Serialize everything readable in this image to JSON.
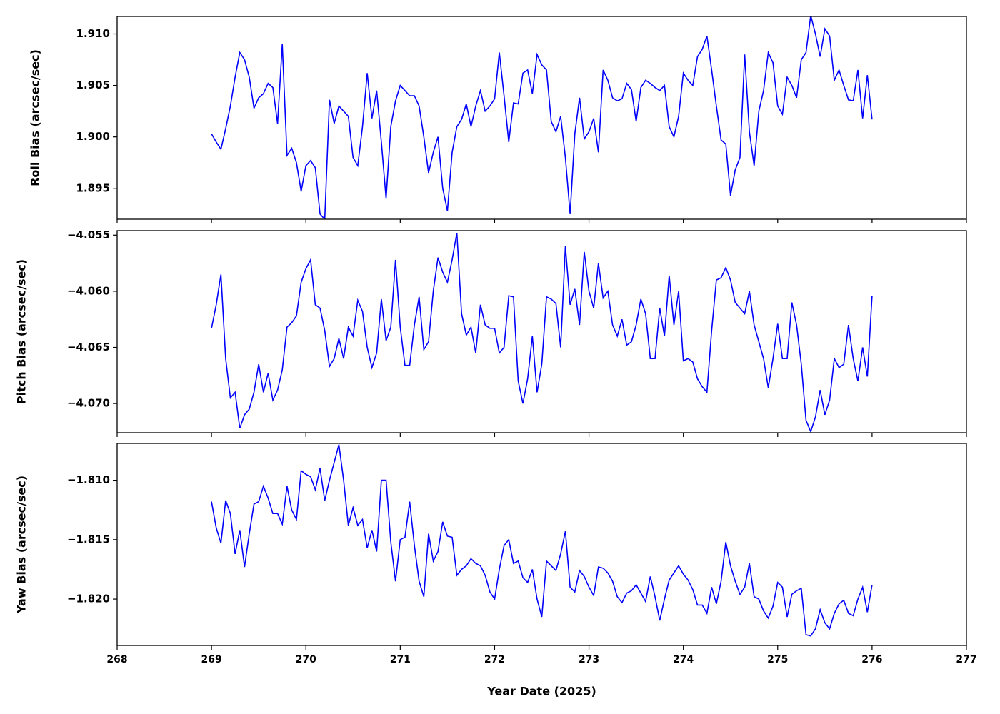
{
  "chart_data": [
    {
      "type": "line",
      "ylabel": "Roll Bias (arcsec/sec)",
      "color": "#0000ff",
      "xlim": [
        268,
        277
      ],
      "ylim": [
        1.892,
        1.9117
      ],
      "yticks": [
        1.895,
        {
          "value": 1.9,
          "label": "1.900"
        },
        1.905,
        {
          "value": 1.91,
          "label": "1.910"
        }
      ],
      "x": [
        269.0,
        269.05,
        269.1,
        269.15,
        269.2,
        269.25,
        269.3,
        269.35,
        269.4,
        269.45,
        269.5,
        269.55,
        269.6,
        269.65,
        269.7,
        269.75,
        269.8,
        269.85,
        269.9,
        269.95,
        270.0,
        270.05,
        270.1,
        270.15,
        270.2,
        270.25,
        270.3,
        270.35,
        270.4,
        270.45,
        270.5,
        270.55,
        270.6,
        270.65,
        270.7,
        270.75,
        270.8,
        270.85,
        270.9,
        270.95,
        271.0,
        271.05,
        271.1,
        271.15,
        271.2,
        271.25,
        271.3,
        271.35,
        271.4,
        271.45,
        271.5,
        271.55,
        271.6,
        271.65,
        271.7,
        271.75,
        271.8,
        271.85,
        271.9,
        271.95,
        272.0,
        272.05,
        272.1,
        272.15,
        272.2,
        272.25,
        272.3,
        272.35,
        272.4,
        272.45,
        272.5,
        272.55,
        272.6,
        272.65,
        272.7,
        272.75,
        272.8,
        272.85,
        272.9,
        272.95,
        273.0,
        273.05,
        273.1,
        273.15,
        273.2,
        273.25,
        273.3,
        273.35,
        273.4,
        273.45,
        273.5,
        273.55,
        273.6,
        273.65,
        273.7,
        273.75,
        273.8,
        273.85,
        273.9,
        273.95,
        274.0,
        274.05,
        274.1,
        274.15,
        274.2,
        274.25,
        274.3,
        274.35,
        274.4,
        274.45,
        274.5,
        274.55,
        274.6,
        274.65,
        274.7,
        274.75,
        274.8,
        274.85,
        274.9,
        274.95,
        275.0,
        275.05,
        275.1,
        275.15,
        275.2,
        275.25,
        275.3,
        275.35,
        275.4,
        275.45,
        275.5,
        275.55,
        275.6,
        275.65,
        275.7,
        275.75,
        275.8,
        275.85,
        275.9,
        275.95,
        276.0
      ],
      "values": [
        1.9003,
        1.8995,
        1.8988,
        1.9008,
        1.903,
        1.9058,
        1.9082,
        1.9075,
        1.9058,
        1.9028,
        1.9038,
        1.9042,
        1.9052,
        1.9048,
        1.9013,
        1.909,
        1.8982,
        1.8989,
        1.8975,
        1.8947,
        1.8972,
        1.8977,
        1.897,
        1.8925,
        1.892,
        1.9036,
        1.9013,
        1.903,
        1.9025,
        1.902,
        1.898,
        1.8972,
        1.901,
        1.9062,
        1.9018,
        1.9045,
        1.8995,
        1.894,
        1.901,
        1.9035,
        1.905,
        1.9045,
        1.904,
        1.904,
        1.903,
        1.9,
        1.8965,
        1.8985,
        1.9,
        1.895,
        1.8928,
        1.8985,
        1.901,
        1.9017,
        1.9032,
        1.901,
        1.903,
        1.9045,
        1.9025,
        1.903,
        1.9037,
        1.9082,
        1.904,
        1.8995,
        1.9033,
        1.9032,
        1.9062,
        1.9065,
        1.9042,
        1.908,
        1.907,
        1.9065,
        1.9015,
        1.9005,
        1.902,
        1.898,
        1.8925,
        1.9003,
        1.9038,
        1.8998,
        1.9005,
        1.9018,
        1.8985,
        1.9065,
        1.9055,
        1.9038,
        1.9035,
        1.9037,
        1.9052,
        1.9046,
        1.9015,
        1.9048,
        1.9055,
        1.9052,
        1.9048,
        1.9045,
        1.905,
        1.901,
        1.9,
        1.902,
        1.9062,
        1.9055,
        1.905,
        1.9078,
        1.9085,
        1.9098,
        1.9065,
        1.903,
        1.8997,
        1.8993,
        1.8943,
        1.8968,
        1.898,
        1.908,
        1.9005,
        1.8972,
        1.9025,
        1.9045,
        1.9082,
        1.9072,
        1.903,
        1.9022,
        1.9058,
        1.905,
        1.9038,
        1.9075,
        1.9082,
        1.9118,
        1.91,
        1.9078,
        1.9105,
        1.9098,
        1.9055,
        1.9065,
        1.905,
        1.9036,
        1.9035,
        1.9065,
        1.9018,
        1.906,
        1.9017
      ]
    },
    {
      "type": "line",
      "ylabel": "Pitch Bias (arcsec/sec)",
      "color": "#0000ff",
      "xlim": [
        268,
        277
      ],
      "ylim": [
        -4.0726,
        -4.0546
      ],
      "yticks": [
        {
          "value": -4.07,
          "label": "−4.070"
        },
        {
          "value": -4.065,
          "label": "−4.065"
        },
        {
          "value": -4.06,
          "label": "−4.060"
        },
        {
          "value": -4.055,
          "label": "−4.055"
        }
      ],
      "x": [
        269.0,
        269.05,
        269.1,
        269.15,
        269.2,
        269.25,
        269.3,
        269.35,
        269.4,
        269.45,
        269.5,
        269.55,
        269.6,
        269.65,
        269.7,
        269.75,
        269.8,
        269.85,
        269.9,
        269.95,
        270.0,
        270.05,
        270.1,
        270.15,
        270.2,
        270.25,
        270.3,
        270.35,
        270.4,
        270.45,
        270.5,
        270.55,
        270.6,
        270.65,
        270.7,
        270.75,
        270.8,
        270.85,
        270.9,
        270.95,
        271.0,
        271.05,
        271.1,
        271.15,
        271.2,
        271.25,
        271.3,
        271.35,
        271.4,
        271.45,
        271.5,
        271.55,
        271.6,
        271.65,
        271.7,
        271.75,
        271.8,
        271.85,
        271.9,
        271.95,
        272.0,
        272.05,
        272.1,
        272.15,
        272.2,
        272.25,
        272.3,
        272.35,
        272.4,
        272.45,
        272.5,
        272.55,
        272.6,
        272.65,
        272.7,
        272.75,
        272.8,
        272.85,
        272.9,
        272.95,
        273.0,
        273.05,
        273.1,
        273.15,
        273.2,
        273.25,
        273.3,
        273.35,
        273.4,
        273.45,
        273.5,
        273.55,
        273.6,
        273.65,
        273.7,
        273.75,
        273.8,
        273.85,
        273.9,
        273.95,
        274.0,
        274.05,
        274.1,
        274.15,
        274.2,
        274.25,
        274.3,
        274.35,
        274.4,
        274.45,
        274.5,
        274.55,
        274.6,
        274.65,
        274.7,
        274.75,
        274.8,
        274.85,
        274.9,
        274.95,
        275.0,
        275.05,
        275.1,
        275.15,
        275.2,
        275.25,
        275.3,
        275.35,
        275.4,
        275.45,
        275.5,
        275.55,
        275.6,
        275.65,
        275.7,
        275.75,
        275.8,
        275.85,
        275.9,
        275.95,
        276.0
      ],
      "values": [
        -4.0633,
        -4.0612,
        -4.0585,
        -4.066,
        -4.0695,
        -4.069,
        -4.0722,
        -4.071,
        -4.0705,
        -4.069,
        -4.0665,
        -4.069,
        -4.0673,
        -4.0697,
        -4.0688,
        -4.067,
        -4.0632,
        -4.0628,
        -4.0622,
        -4.0592,
        -4.058,
        -4.0572,
        -4.0612,
        -4.0615,
        -4.0635,
        -4.0667,
        -4.066,
        -4.0642,
        -4.066,
        -4.0632,
        -4.064,
        -4.0608,
        -4.0618,
        -4.065,
        -4.0668,
        -4.0655,
        -4.0607,
        -4.0644,
        -4.0632,
        -4.0572,
        -4.0632,
        -4.0666,
        -4.0666,
        -4.063,
        -4.0605,
        -4.0652,
        -4.0645,
        -4.06,
        -4.057,
        -4.0583,
        -4.0592,
        -4.0572,
        -4.0548,
        -4.062,
        -4.0639,
        -4.0632,
        -4.0655,
        -4.0612,
        -4.063,
        -4.0633,
        -4.0633,
        -4.0655,
        -4.065,
        -4.0604,
        -4.0605,
        -4.068,
        -4.07,
        -4.0678,
        -4.064,
        -4.069,
        -4.0665,
        -4.0605,
        -4.0607,
        -4.0611,
        -4.065,
        -4.056,
        -4.0612,
        -4.0598,
        -4.063,
        -4.0565,
        -4.06,
        -4.0615,
        -4.0575,
        -4.0606,
        -4.06,
        -4.063,
        -4.064,
        -4.0625,
        -4.0648,
        -4.0645,
        -4.063,
        -4.0607,
        -4.062,
        -4.066,
        -4.066,
        -4.0615,
        -4.064,
        -4.0586,
        -4.063,
        -4.06,
        -4.0662,
        -4.066,
        -4.0663,
        -4.0678,
        -4.0685,
        -4.069,
        -4.0635,
        -4.059,
        -4.0588,
        -4.0579,
        -4.059,
        -4.061,
        -4.0615,
        -4.062,
        -4.06,
        -4.063,
        -4.0645,
        -4.066,
        -4.0686,
        -4.066,
        -4.0629,
        -4.066,
        -4.066,
        -4.061,
        -4.063,
        -4.0665,
        -4.0715,
        -4.0725,
        -4.0712,
        -4.0688,
        -4.071,
        -4.0697,
        -4.066,
        -4.0668,
        -4.0665,
        -4.063,
        -4.066,
        -4.068,
        -4.065,
        -4.0676,
        -4.0604
      ]
    },
    {
      "type": "line",
      "ylabel": "Yaw Bias (arcsec/sec)",
      "xlabel": "Year Date (2025)",
      "color": "#0000ff",
      "xlim": [
        268,
        277
      ],
      "xticks": [
        268,
        269,
        270,
        271,
        272,
        273,
        274,
        275,
        276,
        277
      ],
      "ylim": [
        -1.8239,
        -1.8069
      ],
      "yticks": [
        {
          "value": -1.82,
          "label": "−1.820"
        },
        {
          "value": -1.815,
          "label": "−1.815"
        },
        {
          "value": -1.81,
          "label": "−1.810"
        }
      ],
      "x": [
        269.0,
        269.05,
        269.1,
        269.15,
        269.2,
        269.25,
        269.3,
        269.35,
        269.4,
        269.45,
        269.5,
        269.55,
        269.6,
        269.65,
        269.7,
        269.75,
        269.8,
        269.85,
        269.9,
        269.95,
        270.0,
        270.05,
        270.1,
        270.15,
        270.2,
        270.25,
        270.3,
        270.35,
        270.4,
        270.45,
        270.5,
        270.55,
        270.6,
        270.65,
        270.7,
        270.75,
        270.8,
        270.85,
        270.9,
        270.95,
        271.0,
        271.05,
        271.1,
        271.15,
        271.2,
        271.25,
        271.3,
        271.35,
        271.4,
        271.45,
        271.5,
        271.55,
        271.6,
        271.65,
        271.7,
        271.75,
        271.8,
        271.85,
        271.9,
        271.95,
        272.0,
        272.05,
        272.1,
        272.15,
        272.2,
        272.25,
        272.3,
        272.35,
        272.4,
        272.45,
        272.5,
        272.55,
        272.6,
        272.65,
        272.7,
        272.75,
        272.8,
        272.85,
        272.9,
        272.95,
        273.0,
        273.05,
        273.1,
        273.15,
        273.2,
        273.25,
        273.3,
        273.35,
        273.4,
        273.45,
        273.5,
        273.55,
        273.6,
        273.65,
        273.7,
        273.75,
        273.8,
        273.85,
        273.9,
        273.95,
        274.0,
        274.05,
        274.1,
        274.15,
        274.2,
        274.25,
        274.3,
        274.35,
        274.4,
        274.45,
        274.5,
        274.55,
        274.6,
        274.65,
        274.7,
        274.75,
        274.8,
        274.85,
        274.9,
        274.95,
        275.0,
        275.05,
        275.1,
        275.15,
        275.2,
        275.25,
        275.3,
        275.35,
        275.4,
        275.45,
        275.5,
        275.55,
        275.6,
        275.65,
        275.7,
        275.75,
        275.8,
        275.85,
        275.9,
        275.95,
        276.0
      ],
      "values": [
        -1.8118,
        -1.814,
        -1.8153,
        -1.8117,
        -1.8128,
        -1.8162,
        -1.8142,
        -1.8173,
        -1.8145,
        -1.812,
        -1.8118,
        -1.8105,
        -1.8115,
        -1.8128,
        -1.8128,
        -1.8137,
        -1.8105,
        -1.8125,
        -1.8133,
        -1.8092,
        -1.8095,
        -1.8097,
        -1.8108,
        -1.809,
        -1.8117,
        -1.81,
        -1.8085,
        -1.807,
        -1.81,
        -1.8138,
        -1.8123,
        -1.8138,
        -1.8133,
        -1.8157,
        -1.8142,
        -1.816,
        -1.81,
        -1.81,
        -1.8152,
        -1.8185,
        -1.815,
        -1.8148,
        -1.8118,
        -1.8155,
        -1.8185,
        -1.8198,
        -1.8145,
        -1.8168,
        -1.816,
        -1.8135,
        -1.8147,
        -1.8148,
        -1.818,
        -1.8175,
        -1.8172,
        -1.8166,
        -1.817,
        -1.8172,
        -1.818,
        -1.8194,
        -1.82,
        -1.8175,
        -1.8155,
        -1.815,
        -1.817,
        -1.8168,
        -1.8182,
        -1.8186,
        -1.8175,
        -1.82,
        -1.8215,
        -1.8168,
        -1.8172,
        -1.8176,
        -1.8162,
        -1.8143,
        -1.819,
        -1.8194,
        -1.8176,
        -1.8181,
        -1.819,
        -1.8197,
        -1.8173,
        -1.8174,
        -1.8178,
        -1.8185,
        -1.8198,
        -1.8203,
        -1.8195,
        -1.8193,
        -1.8188,
        -1.8195,
        -1.8202,
        -1.8181,
        -1.8198,
        -1.8218,
        -1.82,
        -1.8184,
        -1.8178,
        -1.8172,
        -1.8179,
        -1.8184,
        -1.8192,
        -1.8205,
        -1.8205,
        -1.8212,
        -1.819,
        -1.8204,
        -1.8185,
        -1.8152,
        -1.8172,
        -1.8185,
        -1.8196,
        -1.819,
        -1.817,
        -1.8198,
        -1.82,
        -1.821,
        -1.8216,
        -1.8206,
        -1.8186,
        -1.819,
        -1.8215,
        -1.8196,
        -1.8193,
        -1.8191,
        -1.823,
        -1.8231,
        -1.8225,
        -1.8209,
        -1.822,
        -1.8225,
        -1.8212,
        -1.8204,
        -1.8201,
        -1.8212,
        -1.8214,
        -1.82,
        -1.819,
        -1.8211,
        -1.8188
      ]
    }
  ]
}
